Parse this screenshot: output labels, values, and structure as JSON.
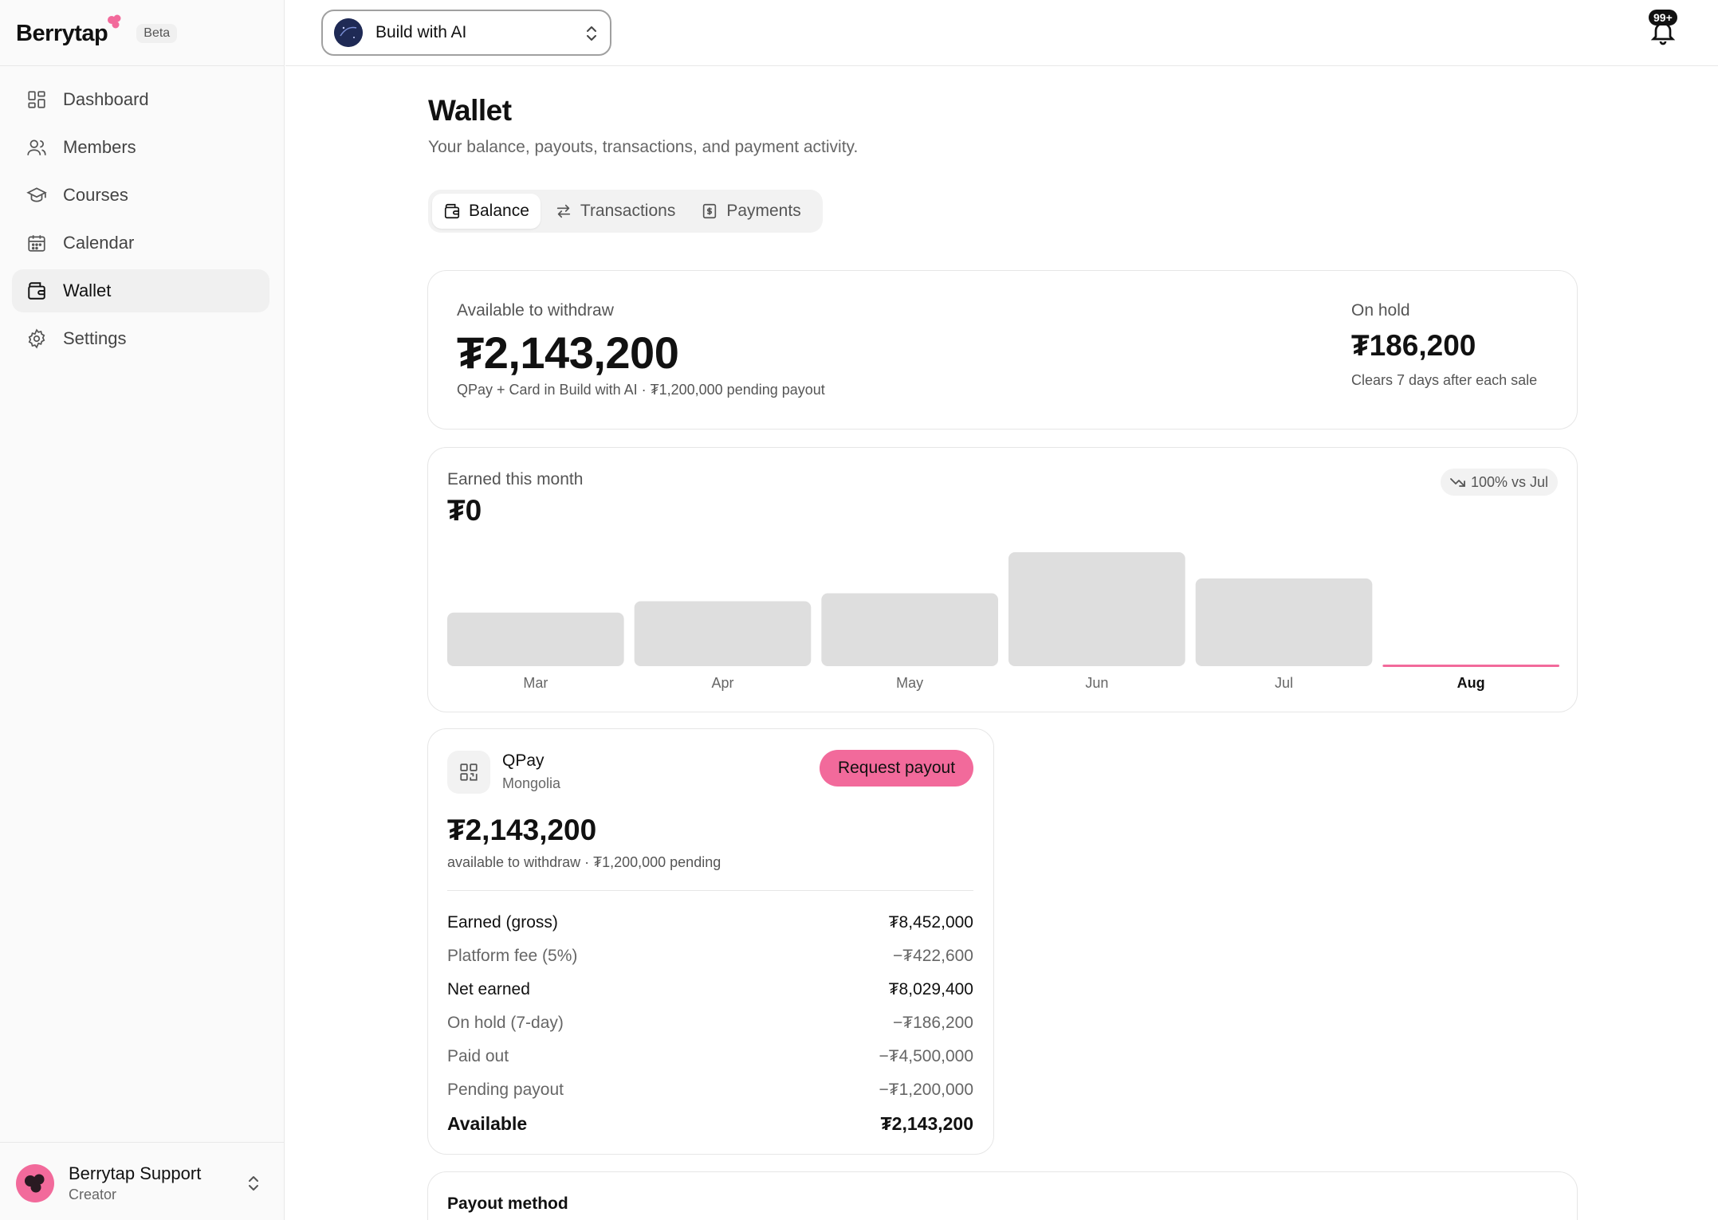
{
  "brand": {
    "name": "Berrytap",
    "badge": "Beta",
    "accent": "#f26a9b"
  },
  "sidebar": {
    "items": [
      {
        "label": "Dashboard",
        "icon": "dashboard-icon",
        "active": false
      },
      {
        "label": "Members",
        "icon": "members-icon",
        "active": false
      },
      {
        "label": "Courses",
        "icon": "courses-icon",
        "active": false
      },
      {
        "label": "Calendar",
        "icon": "calendar-icon",
        "active": false
      },
      {
        "label": "Wallet",
        "icon": "wallet-icon",
        "active": true
      },
      {
        "label": "Settings",
        "icon": "gear-icon",
        "active": false
      }
    ],
    "user": {
      "name": "Berrytap Support",
      "role": "Creator"
    }
  },
  "topbar": {
    "project": "Build with AI",
    "notifications_badge": "99+"
  },
  "page": {
    "title": "Wallet",
    "subtitle": "Your balance, payouts, transactions, and payment activity."
  },
  "tabs": [
    {
      "label": "Balance",
      "icon": "wallet-icon",
      "active": true
    },
    {
      "label": "Transactions",
      "icon": "swap-icon",
      "active": false
    },
    {
      "label": "Payments",
      "icon": "receipt-icon",
      "active": false
    }
  ],
  "balance": {
    "available_label": "Available to withdraw",
    "available_amount": "₮2,143,200",
    "available_note": "QPay + Card in Build with AI · ₮1,200,000 pending payout",
    "hold_label": "On hold",
    "hold_amount": "₮186,200",
    "hold_note": "Clears 7 days after each sale"
  },
  "earned": {
    "label": "Earned this month",
    "amount": "₮0",
    "trend": "100% vs Jul"
  },
  "chart_data": {
    "type": "bar",
    "categories": [
      "Mar",
      "Apr",
      "May",
      "Jun",
      "Jul",
      "Aug"
    ],
    "values": [
      47,
      57,
      64,
      100,
      77,
      0
    ],
    "highlight": "Aug",
    "bar_color": "#dedede",
    "highlight_color": "#f26a9b"
  },
  "qpay": {
    "name": "QPay",
    "country": "Mongolia",
    "button": "Request payout",
    "amount": "₮2,143,200",
    "note": "available to withdraw · ₮1,200,000 pending",
    "rows": [
      {
        "label": "Earned (gross)",
        "value": "₮8,452,000",
        "style": "strong"
      },
      {
        "label": "Platform fee (5%)",
        "value": "−₮422,600",
        "style": "muted"
      },
      {
        "label": "Net earned",
        "value": "₮8,029,400",
        "style": "strong"
      },
      {
        "label": "On hold (7-day)",
        "value": "−₮186,200",
        "style": "muted"
      },
      {
        "label": "Paid out",
        "value": "−₮4,500,000",
        "style": "muted"
      },
      {
        "label": "Pending payout",
        "value": "−₮1,200,000",
        "style": "muted"
      },
      {
        "label": "Available",
        "value": "₮2,143,200",
        "style": "total"
      }
    ]
  },
  "payout_method": {
    "label": "Payout method"
  }
}
